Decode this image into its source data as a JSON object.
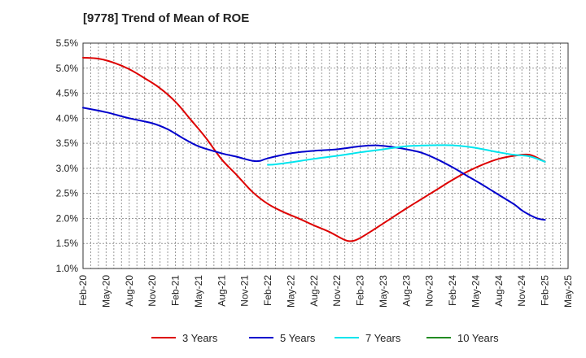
{
  "chart_data": {
    "type": "line",
    "title": "[9778]  Trend of Mean of ROE",
    "xlabel": "",
    "ylabel": "",
    "ylim": [
      1.0,
      5.5
    ],
    "y_ticks": [
      "1.0%",
      "1.5%",
      "2.0%",
      "2.5%",
      "3.0%",
      "3.5%",
      "4.0%",
      "4.5%",
      "5.0%",
      "5.5%"
    ],
    "x_ticks": [
      "Feb-20",
      "May-20",
      "Aug-20",
      "Nov-20",
      "Feb-21",
      "May-21",
      "Aug-21",
      "Nov-21",
      "Feb-22",
      "May-22",
      "Aug-22",
      "Nov-22",
      "Feb-23",
      "May-23",
      "Aug-23",
      "Nov-23",
      "Feb-24",
      "May-24",
      "Aug-24",
      "Nov-24",
      "Feb-25",
      "May-25"
    ],
    "grid": true,
    "legend_position": "bottom",
    "series": [
      {
        "name": "3 Years",
        "color": "#dd0000",
        "points": [
          [
            "Feb-20",
            5.21
          ],
          [
            "Apr-20",
            5.19
          ],
          [
            "Jun-20",
            5.11
          ],
          [
            "Aug-20",
            4.98
          ],
          [
            "Oct-20",
            4.8
          ],
          [
            "Dec-20",
            4.6
          ],
          [
            "Feb-21",
            4.33
          ],
          [
            "Apr-21",
            3.97
          ],
          [
            "Jun-21",
            3.6
          ],
          [
            "Aug-21",
            3.18
          ],
          [
            "Oct-21",
            2.86
          ],
          [
            "Dec-21",
            2.53
          ],
          [
            "Feb-22",
            2.29
          ],
          [
            "Apr-22",
            2.13
          ],
          [
            "Jun-22",
            2.0
          ],
          [
            "Aug-22",
            1.86
          ],
          [
            "Oct-22",
            1.73
          ],
          [
            "Dec-22",
            1.57
          ],
          [
            "Jan-23",
            1.55
          ],
          [
            "Feb-23",
            1.61
          ],
          [
            "Apr-23",
            1.8
          ],
          [
            "Jun-23",
            2.0
          ],
          [
            "Aug-23",
            2.2
          ],
          [
            "Oct-23",
            2.39
          ],
          [
            "Dec-23",
            2.58
          ],
          [
            "Feb-24",
            2.77
          ],
          [
            "Apr-24",
            2.94
          ],
          [
            "Jun-24",
            3.08
          ],
          [
            "Aug-24",
            3.19
          ],
          [
            "Oct-24",
            3.25
          ],
          [
            "Dec-24",
            3.27
          ],
          [
            "Feb-25",
            3.13
          ]
        ]
      },
      {
        "name": "5 Years",
        "color": "#0000cc",
        "points": [
          [
            "Feb-20",
            4.21
          ],
          [
            "May-20",
            4.12
          ],
          [
            "Aug-20",
            4.0
          ],
          [
            "Nov-20",
            3.9
          ],
          [
            "Jan-21",
            3.78
          ],
          [
            "Mar-21",
            3.6
          ],
          [
            "May-21",
            3.44
          ],
          [
            "Aug-21",
            3.3
          ],
          [
            "Oct-21",
            3.23
          ],
          [
            "Dec-21",
            3.15
          ],
          [
            "Jan-22",
            3.15
          ],
          [
            "Feb-22",
            3.2
          ],
          [
            "May-22",
            3.3
          ],
          [
            "Aug-22",
            3.35
          ],
          [
            "Nov-22",
            3.38
          ],
          [
            "Feb-23",
            3.44
          ],
          [
            "Apr-23",
            3.46
          ],
          [
            "Jun-23",
            3.43
          ],
          [
            "Aug-23",
            3.38
          ],
          [
            "Oct-23",
            3.31
          ],
          [
            "Dec-23",
            3.18
          ],
          [
            "Feb-24",
            3.02
          ],
          [
            "Apr-24",
            2.84
          ],
          [
            "Jun-24",
            2.66
          ],
          [
            "Aug-24",
            2.47
          ],
          [
            "Oct-24",
            2.28
          ],
          [
            "Nov-24",
            2.16
          ],
          [
            "Dec-24",
            2.07
          ],
          [
            "Jan-25",
            2.0
          ],
          [
            "Feb-25",
            1.97
          ]
        ]
      },
      {
        "name": "7 Years",
        "color": "#00e5ee",
        "points": [
          [
            "Feb-22",
            3.07
          ],
          [
            "Mar-22",
            3.08
          ],
          [
            "May-22",
            3.12
          ],
          [
            "Aug-22",
            3.19
          ],
          [
            "Nov-22",
            3.25
          ],
          [
            "Feb-23",
            3.32
          ],
          [
            "May-23",
            3.38
          ],
          [
            "Aug-23",
            3.44
          ],
          [
            "Nov-23",
            3.46
          ],
          [
            "Feb-24",
            3.46
          ],
          [
            "Apr-24",
            3.43
          ],
          [
            "Jun-24",
            3.38
          ],
          [
            "Aug-24",
            3.32
          ],
          [
            "Oct-24",
            3.27
          ],
          [
            "Dec-24",
            3.24
          ],
          [
            "Feb-25",
            3.13
          ]
        ]
      },
      {
        "name": "10 Years",
        "color": "#228b22",
        "points": []
      }
    ]
  }
}
